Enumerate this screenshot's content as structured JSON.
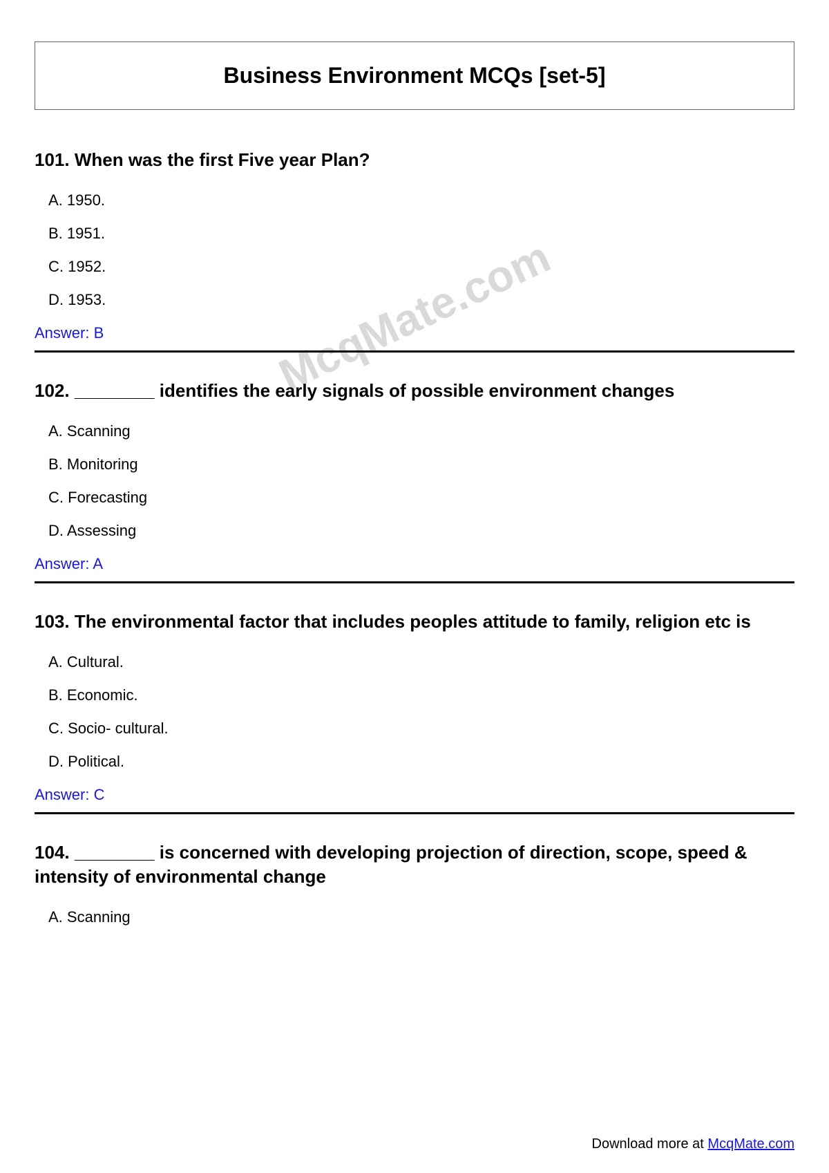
{
  "title": "Business Environment MCQs [set-5]",
  "watermark": "McqMate.com",
  "questions": [
    {
      "number": "101",
      "text": "When was the first Five year Plan?",
      "options": {
        "A": "1950.",
        "B": "1951.",
        "C": "1952.",
        "D": "1953."
      },
      "answer": "Answer: B"
    },
    {
      "number": "102",
      "text": "________ identifies the early signals of possible environment changes",
      "options": {
        "A": "Scanning",
        "B": "Monitoring",
        "C": "Forecasting",
        "D": "Assessing"
      },
      "answer": "Answer: A"
    },
    {
      "number": "103",
      "text": "The environmental factor that includes peoples attitude to family, religion etc is",
      "options": {
        "A": "Cultural.",
        "B": "Economic.",
        "C": "Socio- cultural.",
        "D": "Political."
      },
      "answer": "Answer: C"
    },
    {
      "number": "104",
      "text": "________ is concerned with developing projection of direction, scope, speed & intensity of environmental change",
      "options": {
        "A": "Scanning"
      },
      "answer": ""
    }
  ],
  "footer": {
    "prefix": "Download more at ",
    "link_text": "McqMate.com"
  },
  "colors": {
    "text": "#000000",
    "answer": "#1a1ad6",
    "link": "#1a1ad6",
    "watermark": "#d9d9d9",
    "border": "#666666",
    "divider": "#000000",
    "background": "#ffffff"
  },
  "typography": {
    "title_fontsize": 32,
    "question_fontsize": 26,
    "option_fontsize": 22,
    "answer_fontsize": 22,
    "footer_fontsize": 20,
    "watermark_fontsize": 64
  }
}
